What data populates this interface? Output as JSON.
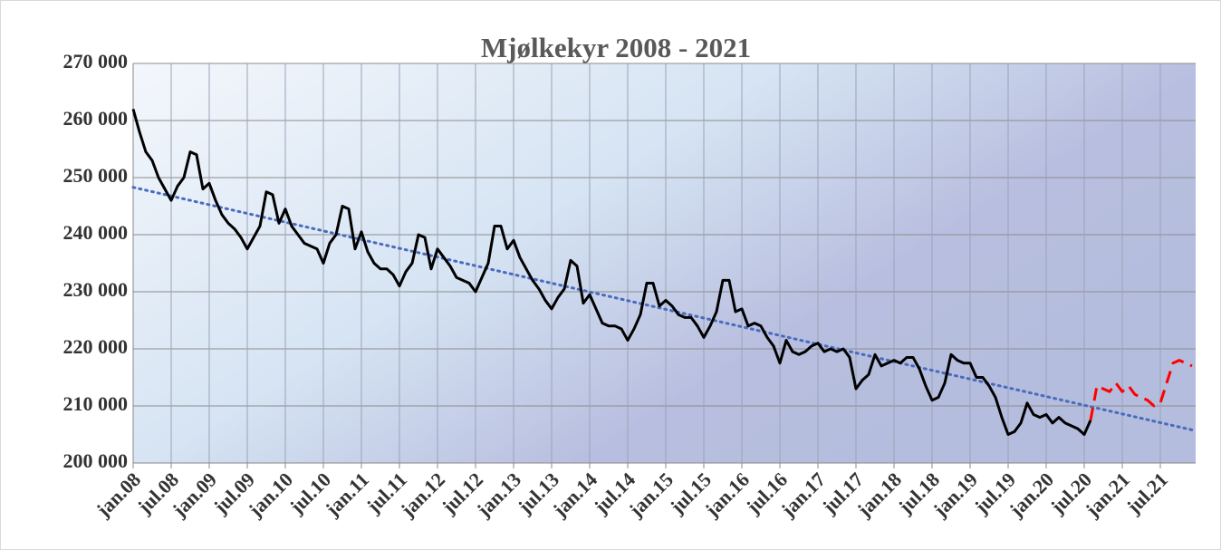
{
  "chart_data": {
    "type": "line",
    "title": "Mjølkekyr 2008 - 2021",
    "categories": [
      "jan.08",
      null,
      null,
      null,
      null,
      null,
      "jul.08",
      null,
      null,
      null,
      null,
      null,
      "jan.09",
      null,
      null,
      null,
      null,
      null,
      "jul.09",
      null,
      null,
      null,
      null,
      null,
      "jan.10",
      null,
      null,
      null,
      null,
      null,
      "jul.10",
      null,
      null,
      null,
      null,
      null,
      "jan.11",
      null,
      null,
      null,
      null,
      null,
      "jul.11",
      null,
      null,
      null,
      null,
      null,
      "jan.12",
      null,
      null,
      null,
      null,
      null,
      "jul.12",
      null,
      null,
      null,
      null,
      null,
      "jan.13",
      null,
      null,
      null,
      null,
      null,
      "jul.13",
      null,
      null,
      null,
      null,
      null,
      "jan.14",
      null,
      null,
      null,
      null,
      null,
      "jul.14",
      null,
      null,
      null,
      null,
      null,
      "jan.15",
      null,
      null,
      null,
      null,
      null,
      "jul.15",
      null,
      null,
      null,
      null,
      null,
      "jan.16",
      null,
      null,
      null,
      null,
      null,
      "jul.16",
      null,
      null,
      null,
      null,
      null,
      "jan.17",
      null,
      null,
      null,
      null,
      null,
      "jul.17",
      null,
      null,
      null,
      null,
      null,
      "jan.18",
      null,
      null,
      null,
      null,
      null,
      "jul.18",
      null,
      null,
      null,
      null,
      null,
      "jan.19",
      null,
      null,
      null,
      null,
      null,
      "jul.19",
      null,
      null,
      null,
      null,
      null,
      "jan.20",
      null,
      null,
      null,
      null,
      null,
      "jul.20",
      null,
      null,
      null,
      null,
      null,
      "jan.21",
      null,
      null,
      null,
      null,
      null,
      "jul.21",
      null,
      null,
      null,
      null,
      null
    ],
    "series": [
      {
        "color": "#000000",
        "dash": false,
        "values": [
          262000,
          258000,
          254500,
          253000,
          250000,
          248000,
          246000,
          248500,
          250000,
          254500,
          254000,
          248000,
          249000,
          246000,
          243500,
          242000,
          241000,
          239500,
          237500,
          239500,
          241500,
          247500,
          247000,
          242000,
          244500,
          241500,
          240000,
          238500,
          238000,
          237500,
          235000,
          238500,
          240000,
          245000,
          244500,
          237500,
          240500,
          237000,
          235000,
          234000,
          234000,
          233000,
          231000,
          233500,
          235000,
          240000,
          239500,
          234000,
          237500,
          236000,
          234500,
          232500,
          232000,
          231500,
          230000,
          232500,
          235000,
          241500,
          241500,
          237500,
          239000,
          236000,
          234000,
          232000,
          230500,
          228500,
          227000,
          229000,
          230500,
          235500,
          234500,
          228000,
          229500,
          227000,
          224500,
          224000,
          224000,
          223500,
          221500,
          223500,
          226000,
          231500,
          231500,
          227500,
          228500,
          227500,
          226000,
          225500,
          225500,
          224000,
          222000,
          224000,
          226500,
          232000,
          232000,
          226500,
          227000,
          224000,
          224500,
          224000,
          222000,
          220500,
          217500,
          221500,
          219500,
          219000,
          219500,
          220500,
          221000,
          219500,
          220000,
          219500,
          220000,
          218500,
          213000,
          214500,
          215500,
          219000,
          217000,
          217500,
          218000,
          217500,
          218500,
          218500,
          216500,
          213500,
          211000,
          211500,
          214000,
          219000,
          218000,
          217500,
          217500,
          215000,
          215000,
          213500,
          211500,
          208000,
          205000,
          205500,
          207000,
          210500,
          208500,
          208000,
          208500,
          207000,
          208000,
          207000,
          206500,
          206000,
          205000,
          207500,
          null,
          null,
          null,
          null,
          null,
          null,
          null,
          null,
          null,
          null,
          null,
          null,
          null,
          null,
          null,
          null
        ]
      },
      {
        "color": "#ff0000",
        "dash": true,
        "values": [
          null,
          null,
          null,
          null,
          null,
          null,
          null,
          null,
          null,
          null,
          null,
          null,
          null,
          null,
          null,
          null,
          null,
          null,
          null,
          null,
          null,
          null,
          null,
          null,
          null,
          null,
          null,
          null,
          null,
          null,
          null,
          null,
          null,
          null,
          null,
          null,
          null,
          null,
          null,
          null,
          null,
          null,
          null,
          null,
          null,
          null,
          null,
          null,
          null,
          null,
          null,
          null,
          null,
          null,
          null,
          null,
          null,
          null,
          null,
          null,
          null,
          null,
          null,
          null,
          null,
          null,
          null,
          null,
          null,
          null,
          null,
          null,
          null,
          null,
          null,
          null,
          null,
          null,
          null,
          null,
          null,
          null,
          null,
          null,
          null,
          null,
          null,
          null,
          null,
          null,
          null,
          null,
          null,
          null,
          null,
          null,
          null,
          null,
          null,
          null,
          null,
          null,
          null,
          null,
          null,
          null,
          null,
          null,
          null,
          null,
          null,
          null,
          null,
          null,
          null,
          null,
          null,
          null,
          null,
          null,
          null,
          null,
          null,
          null,
          null,
          null,
          null,
          null,
          null,
          null,
          null,
          null,
          null,
          null,
          null,
          null,
          null,
          null,
          null,
          null,
          null,
          null,
          null,
          null,
          null,
          null,
          null,
          null,
          null,
          null,
          null,
          207500,
          213500,
          213000,
          212500,
          214000,
          212500,
          213500,
          212000,
          211500,
          211000,
          210000,
          210500,
          214000,
          217500,
          218000,
          217500,
          217000
        ]
      }
    ],
    "trend": {
      "color": "#4a6bbd",
      "values": [
        248300,
        205800
      ]
    },
    "ylim": [
      200000,
      270000
    ],
    "yticks": [
      {
        "value": 200000,
        "label": "200 000"
      },
      {
        "value": 210000,
        "label": "210 000"
      },
      {
        "value": 220000,
        "label": "220 000"
      },
      {
        "value": 230000,
        "label": "230 000"
      },
      {
        "value": 240000,
        "label": "240 000"
      },
      {
        "value": 250000,
        "label": "250 000"
      },
      {
        "value": 260000,
        "label": "260 000"
      },
      {
        "value": 270000,
        "label": "270 000"
      }
    ],
    "grid": true
  }
}
